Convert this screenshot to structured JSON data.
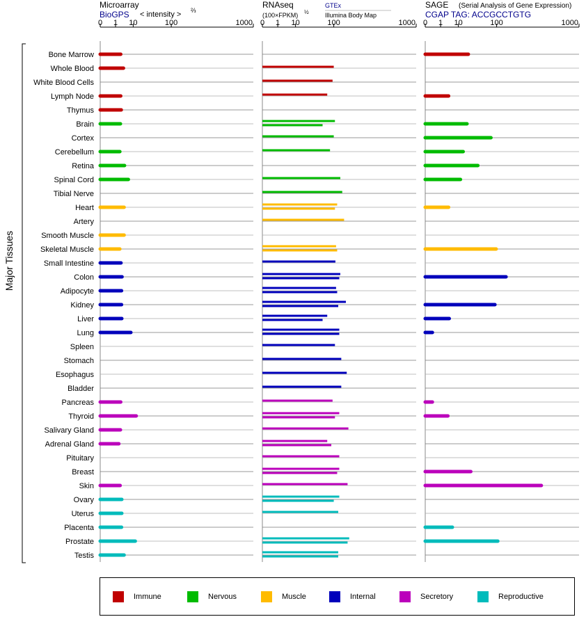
{
  "colors": {
    "Immune": "#c00000",
    "Nervous": "#00bb00",
    "Muscle": "#ffbb00",
    "Internal": "#0000bb",
    "Secretory": "#bb00bb",
    "Reproductive": "#00bbbb"
  },
  "side_label": "Major Tissues",
  "panels": {
    "microarray": {
      "title": "Microarray",
      "source": "BioGPS",
      "measure": "< intensity >",
      "measure_exp": "⅔"
    },
    "rnaseq": {
      "title": "RNAseq",
      "measure": "(100×FPKM)",
      "measure_exp": "½",
      "source1": "GTEx",
      "source2": "Illumina Body Map"
    },
    "sage": {
      "title": "SAGE",
      "subtitle": "(Serial Analysis of Gene Expression)",
      "source": "CGAP TAG: ACCGCCTGTG"
    }
  },
  "chart_data": {
    "type": "bar",
    "orientation": "horizontal",
    "x_ticks": [
      "0",
      "1",
      "10",
      "100",
      "1000"
    ],
    "x_scale": "power (value^(1/3))",
    "xlim": [
      0,
      1000
    ],
    "grid": true,
    "legend_position": "bottom",
    "categories": [
      "Bone Marrow",
      "Whole Blood",
      "White Blood Cells",
      "Lymph Node",
      "Thymus",
      "Brain",
      "Cortex",
      "Cerebellum",
      "Retina",
      "Spinal Cord",
      "Tibial Nerve",
      "Heart",
      "Artery",
      "Smooth Muscle",
      "Skeletal Muscle",
      "Small Intestine",
      "Colon",
      "Adipocyte",
      "Kidney",
      "Liver",
      "Lung",
      "Spleen",
      "Stomach",
      "Esophagus",
      "Bladder",
      "Pancreas",
      "Thyroid",
      "Salivary Gland",
      "Adrenal Gland",
      "Pituitary",
      "Breast",
      "Skin",
      "Ovary",
      "Uterus",
      "Placenta",
      "Prostate",
      "Testis"
    ],
    "groups": [
      "Immune",
      "Immune",
      "Immune",
      "Immune",
      "Immune",
      "Nervous",
      "Nervous",
      "Nervous",
      "Nervous",
      "Nervous",
      "Nervous",
      "Muscle",
      "Muscle",
      "Muscle",
      "Muscle",
      "Internal",
      "Internal",
      "Internal",
      "Internal",
      "Internal",
      "Internal",
      "Internal",
      "Internal",
      "Internal",
      "Internal",
      "Secretory",
      "Secretory",
      "Secretory",
      "Secretory",
      "Secretory",
      "Secretory",
      "Secretory",
      "Reproductive",
      "Reproductive",
      "Reproductive",
      "Reproductive",
      "Reproductive"
    ],
    "legend": [
      "Immune",
      "Nervous",
      "Muscle",
      "Internal",
      "Secretory",
      "Reproductive"
    ],
    "series": [
      {
        "name": "Microarray",
        "values": [
          2.4,
          3.5,
          null,
          2.4,
          2.6,
          2.3,
          null,
          2.1,
          4.0,
          6.2,
          null,
          3.8,
          null,
          3.8,
          2.1,
          2.5,
          2.9,
          2.7,
          2.7,
          2.8,
          8.0,
          null,
          null,
          null,
          null,
          2.4,
          13.0,
          2.3,
          1.8,
          null,
          null,
          2.2,
          2.8,
          2.8,
          2.7,
          12.0,
          3.8
        ]
      },
      {
        "name": "RNAseq GTEx",
        "values": [
          null,
          100,
          null,
          null,
          null,
          107,
          103,
          85,
          null,
          null,
          null,
          null,
          null,
          null,
          null,
          null,
          130,
          null,
          null,
          null,
          null,
          null,
          null,
          null,
          null,
          null,
          null,
          null,
          null,
          null,
          null,
          null,
          null,
          null,
          null,
          null,
          null
        ]
      },
      {
        "name": "RNAseq Illumina Body Map",
        "values": [
          null,
          null,
          null,
          null,
          null,
          null,
          null,
          null,
          null,
          null,
          null,
          null,
          null,
          null,
          null,
          null,
          null,
          null,
          null,
          null,
          null,
          null,
          null,
          null,
          null,
          null,
          null,
          null,
          null,
          null,
          null,
          null,
          null,
          null,
          null,
          null,
          null
        ]
      },
      {
        "name": "SAGE",
        "values": [
          22,
          null,
          null,
          3.5,
          null,
          20,
          78,
          15,
          40,
          12,
          null,
          3.5,
          null,
          null,
          98,
          null,
          145,
          null,
          93,
          3.8,
          0.1,
          null,
          null,
          null,
          null,
          0.1,
          3.2,
          null,
          null,
          null,
          26,
          430,
          null,
          null,
          5.5,
          105,
          null
        ]
      }
    ],
    "rnaseq_bars": [
      [],
      [
        100
      ],
      [
        95
      ],
      [
        75
      ],
      [],
      [
        105,
        60
      ],
      [
        100
      ],
      [
        85
      ],
      [],
      [
        130
      ],
      [
        140
      ],
      [
        115,
        105
      ],
      [
        150
      ],
      [],
      [
        110,
        115
      ],
      [
        107
      ],
      [
        130,
        125
      ],
      [
        110,
        115
      ],
      [
        160,
        120
      ],
      [
        75,
        60
      ],
      [
        125,
        125
      ],
      [
        105
      ],
      [
        135
      ],
      [
        165
      ],
      [
        135
      ],
      [
        95
      ],
      [
        125,
        105
      ],
      [
        175
      ],
      [
        75,
        90
      ],
      [
        125
      ],
      [
        125,
        115
      ],
      [
        170
      ],
      [
        125,
        100
      ],
      [
        120
      ],
      [],
      [
        180,
        170
      ],
      [
        120,
        120
      ]
    ]
  }
}
